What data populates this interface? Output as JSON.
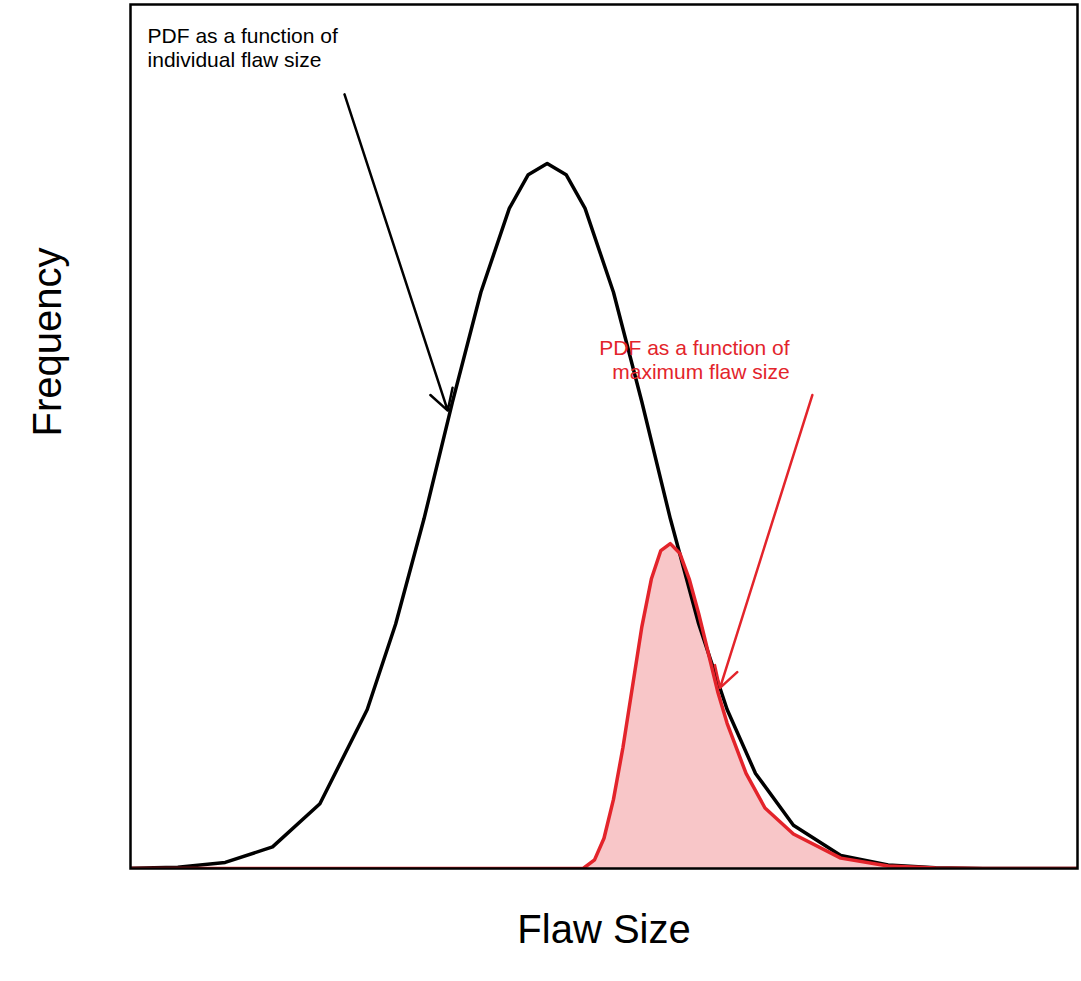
{
  "chart_data": {
    "type": "line",
    "x_label": "Flaw Size",
    "y_label": "Frequency",
    "xlim": [
      0,
      100
    ],
    "ylim": [
      0,
      100
    ],
    "xticks": [],
    "yticks": [],
    "tick_labels": false,
    "series": [
      {
        "name": "PDF as a function of\nindividual flaw size",
        "color": "#000000",
        "x": [
          0,
          5,
          10,
          15,
          20,
          25,
          28,
          31,
          34,
          37,
          40,
          42,
          44,
          46,
          48,
          51,
          54,
          57,
          60,
          63,
          66,
          70,
          75,
          80,
          85,
          90,
          95,
          100
        ],
        "values": [
          0.03,
          0.15,
          0.7,
          2.5,
          7.5,
          18.4,
          28.3,
          40.5,
          54.0,
          66.7,
          76.4,
          80.3,
          81.6,
          80.3,
          76.4,
          66.7,
          54.0,
          40.5,
          28.3,
          18.4,
          11.0,
          5.0,
          1.5,
          0.4,
          0.1,
          0,
          0,
          0
        ]
      },
      {
        "name": "PDF as a function of\nmaximum flaw size",
        "color": "#e3242b",
        "type": "area",
        "x": [
          0,
          47.8,
          49,
          50,
          51,
          52,
          53,
          54,
          55,
          56,
          57,
          58,
          59,
          60,
          61,
          62,
          63,
          65,
          67,
          70,
          75,
          80,
          85,
          90,
          100
        ],
        "values": [
          0,
          0,
          1.0,
          3.5,
          8,
          14,
          21,
          28,
          33.5,
          36.8,
          37.6,
          36.5,
          33.5,
          29.5,
          25,
          20.5,
          16.8,
          11,
          7,
          4.0,
          1.2,
          0.3,
          0.05,
          0,
          0
        ]
      }
    ]
  }
}
